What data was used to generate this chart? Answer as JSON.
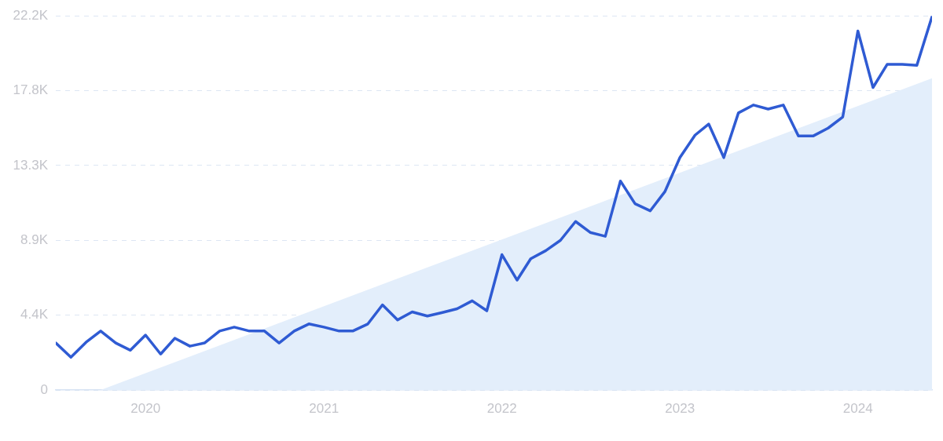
{
  "chart_data": {
    "type": "line",
    "xlim": [
      "2019-07",
      "2024-06"
    ],
    "xticks": [
      {
        "value": "2020-01",
        "label": "2020"
      },
      {
        "value": "2021-01",
        "label": "2021"
      },
      {
        "value": "2022-01",
        "label": "2022"
      },
      {
        "value": "2023-01",
        "label": "2023"
      },
      {
        "value": "2024-01",
        "label": "2024"
      }
    ],
    "ylim": [
      0,
      22200
    ],
    "yticks": [
      0,
      {
        "value": 4440,
        "label": "4.4K"
      },
      {
        "value": 8880,
        "label": "8.9K"
      },
      {
        "value": 13320,
        "label": "13.3K"
      },
      {
        "value": 17760,
        "label": "17.8K"
      },
      {
        "value": 22200,
        "label": "22.2K"
      }
    ],
    "grid": "y",
    "legend": false,
    "marker": "none",
    "line_style": "solid",
    "x": [
      "2019-07",
      "2019-08",
      "2019-09",
      "2019-10",
      "2019-11",
      "2019-12",
      "2020-01",
      "2020-02",
      "2020-03",
      "2020-04",
      "2020-05",
      "2020-06",
      "2020-07",
      "2020-08",
      "2020-09",
      "2020-10",
      "2020-11",
      "2020-12",
      "2021-01",
      "2021-02",
      "2021-03",
      "2021-04",
      "2021-05",
      "2021-06",
      "2021-07",
      "2021-08",
      "2021-09",
      "2021-10",
      "2021-11",
      "2021-12",
      "2022-01",
      "2022-02",
      "2022-03",
      "2022-04",
      "2022-05",
      "2022-06",
      "2022-07",
      "2022-08",
      "2022-09",
      "2022-10",
      "2022-11",
      "2022-12",
      "2023-01",
      "2023-02",
      "2023-03",
      "2023-04",
      "2023-05",
      "2023-06",
      "2023-07",
      "2023-08",
      "2023-09",
      "2023-10",
      "2023-11",
      "2023-12",
      "2024-01",
      "2024-02",
      "2024-03",
      "2024-04",
      "2024-05",
      "2024-06"
    ],
    "series": [
      {
        "type": "area",
        "color": "#e3eefb",
        "x": [
          "2019-10",
          "2024-06"
        ],
        "values": [
          0,
          18500
        ]
      },
      {
        "color": "#2f5bd3",
        "values": [
          2790,
          1940,
          2830,
          3500,
          2790,
          2360,
          3260,
          2130,
          3070,
          2600,
          2790,
          3500,
          3730,
          3500,
          3500,
          2790,
          3500,
          3920,
          3730,
          3500,
          3500,
          3920,
          5050,
          4160,
          4630,
          4390,
          4600,
          4820,
          5290,
          4700,
          8030,
          6520,
          7790,
          8270,
          8880,
          10000,
          9350,
          9120,
          12400,
          11050,
          10630,
          11760,
          13790,
          15120,
          15780,
          13790,
          16440,
          16910,
          16670,
          16910,
          15070,
          15070,
          15540,
          16200,
          21300,
          17950,
          19320,
          19320,
          19270,
          22150
        ]
      }
    ]
  }
}
